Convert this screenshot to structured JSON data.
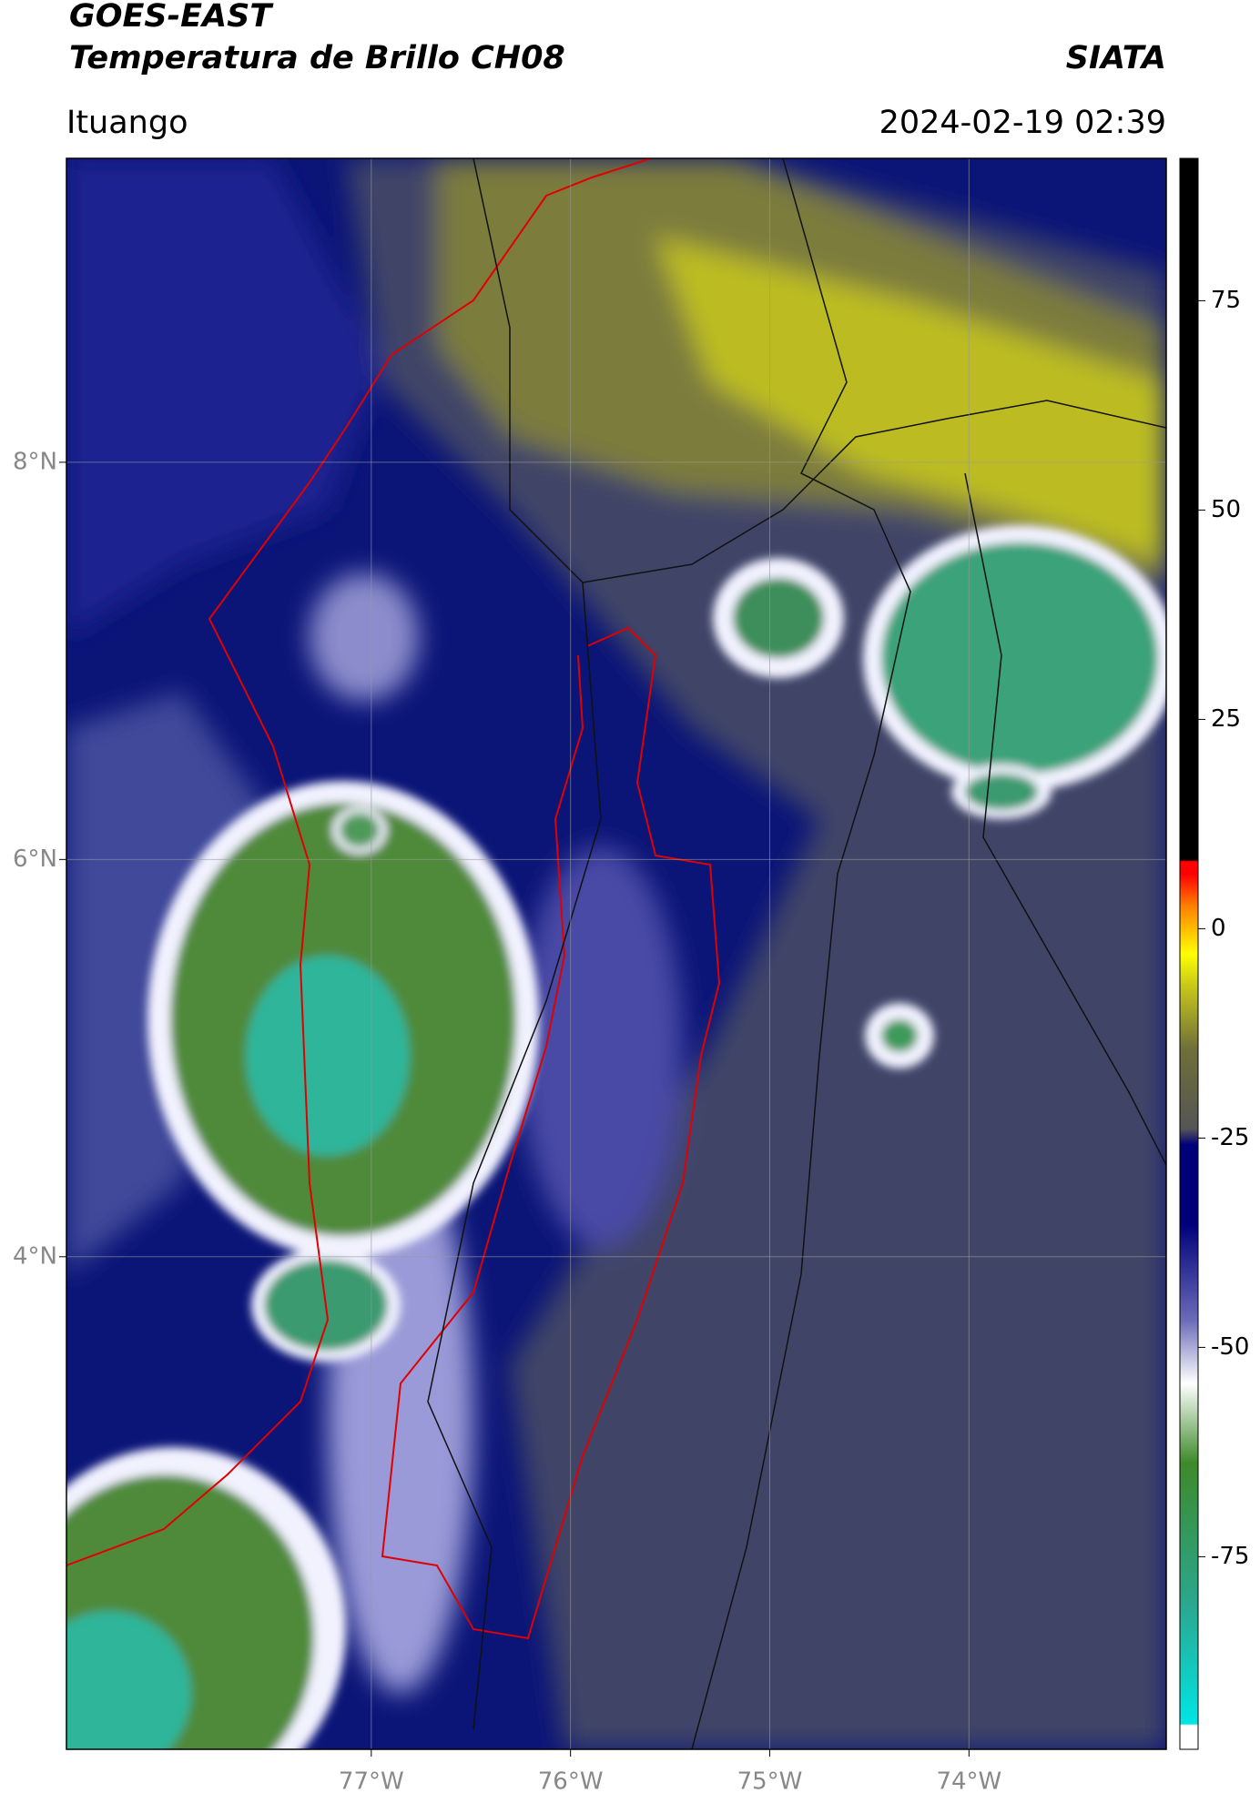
{
  "chart_data": {
    "type": "map",
    "title": "GOES-EAST",
    "subtitle": "Temperatura de Brillo CH08",
    "source": "SIATA",
    "location": "Ituango",
    "datetime": "2024-02-19 02:39",
    "xlim": [
      -78.53,
      -73.01
    ],
    "ylim": [
      1.52,
      9.53
    ],
    "xticks": [
      {
        "value": -77,
        "label": "77°W"
      },
      {
        "value": -76,
        "label": "76°W"
      },
      {
        "value": -75,
        "label": "75°W"
      },
      {
        "value": -74,
        "label": "74°W"
      }
    ],
    "yticks": [
      {
        "value": 8,
        "label": "8°N"
      },
      {
        "value": 6,
        "label": "6°N"
      },
      {
        "value": 4,
        "label": "4°N"
      }
    ],
    "grid": true,
    "colorbar_lim": [
      -98,
      92
    ],
    "colorbar_ticks": [
      75,
      50,
      25,
      0,
      -25,
      -50,
      -75
    ]
  }
}
